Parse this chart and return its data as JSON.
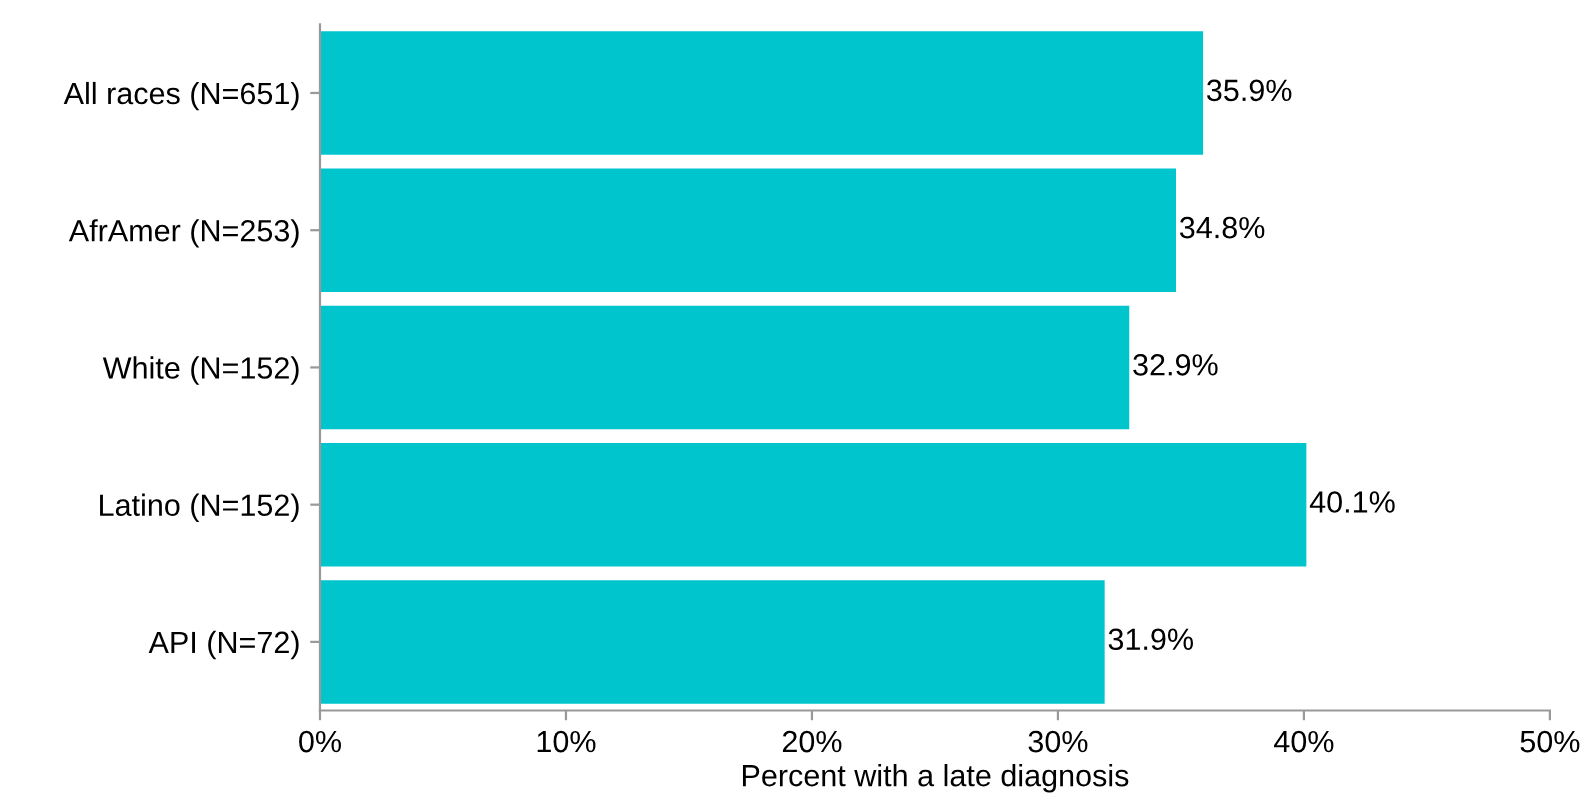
{
  "chart_data": {
    "type": "bar",
    "orientation": "horizontal",
    "categories": [
      "All races (N=651)",
      "AfrAmer (N=253)",
      "White (N=152)",
      "Latino (N=152)",
      "API (N=72)"
    ],
    "values": [
      35.9,
      34.8,
      32.9,
      40.1,
      31.9
    ],
    "value_labels": [
      "35.9%",
      "34.8%",
      "32.9%",
      "40.1%",
      "31.9%"
    ],
    "color": "#00c5cd",
    "xlabel": "Percent with a late diagnosis",
    "xlim": [
      0,
      50
    ],
    "xticks": [
      {
        "value": 0,
        "label": "0%"
      },
      {
        "value": 10,
        "label": "10%"
      },
      {
        "value": 20,
        "label": "20%"
      },
      {
        "value": 30,
        "label": "30%"
      },
      {
        "value": 40,
        "label": "40%"
      },
      {
        "value": 50,
        "label": "50%"
      }
    ],
    "grid": false,
    "legend": false
  }
}
